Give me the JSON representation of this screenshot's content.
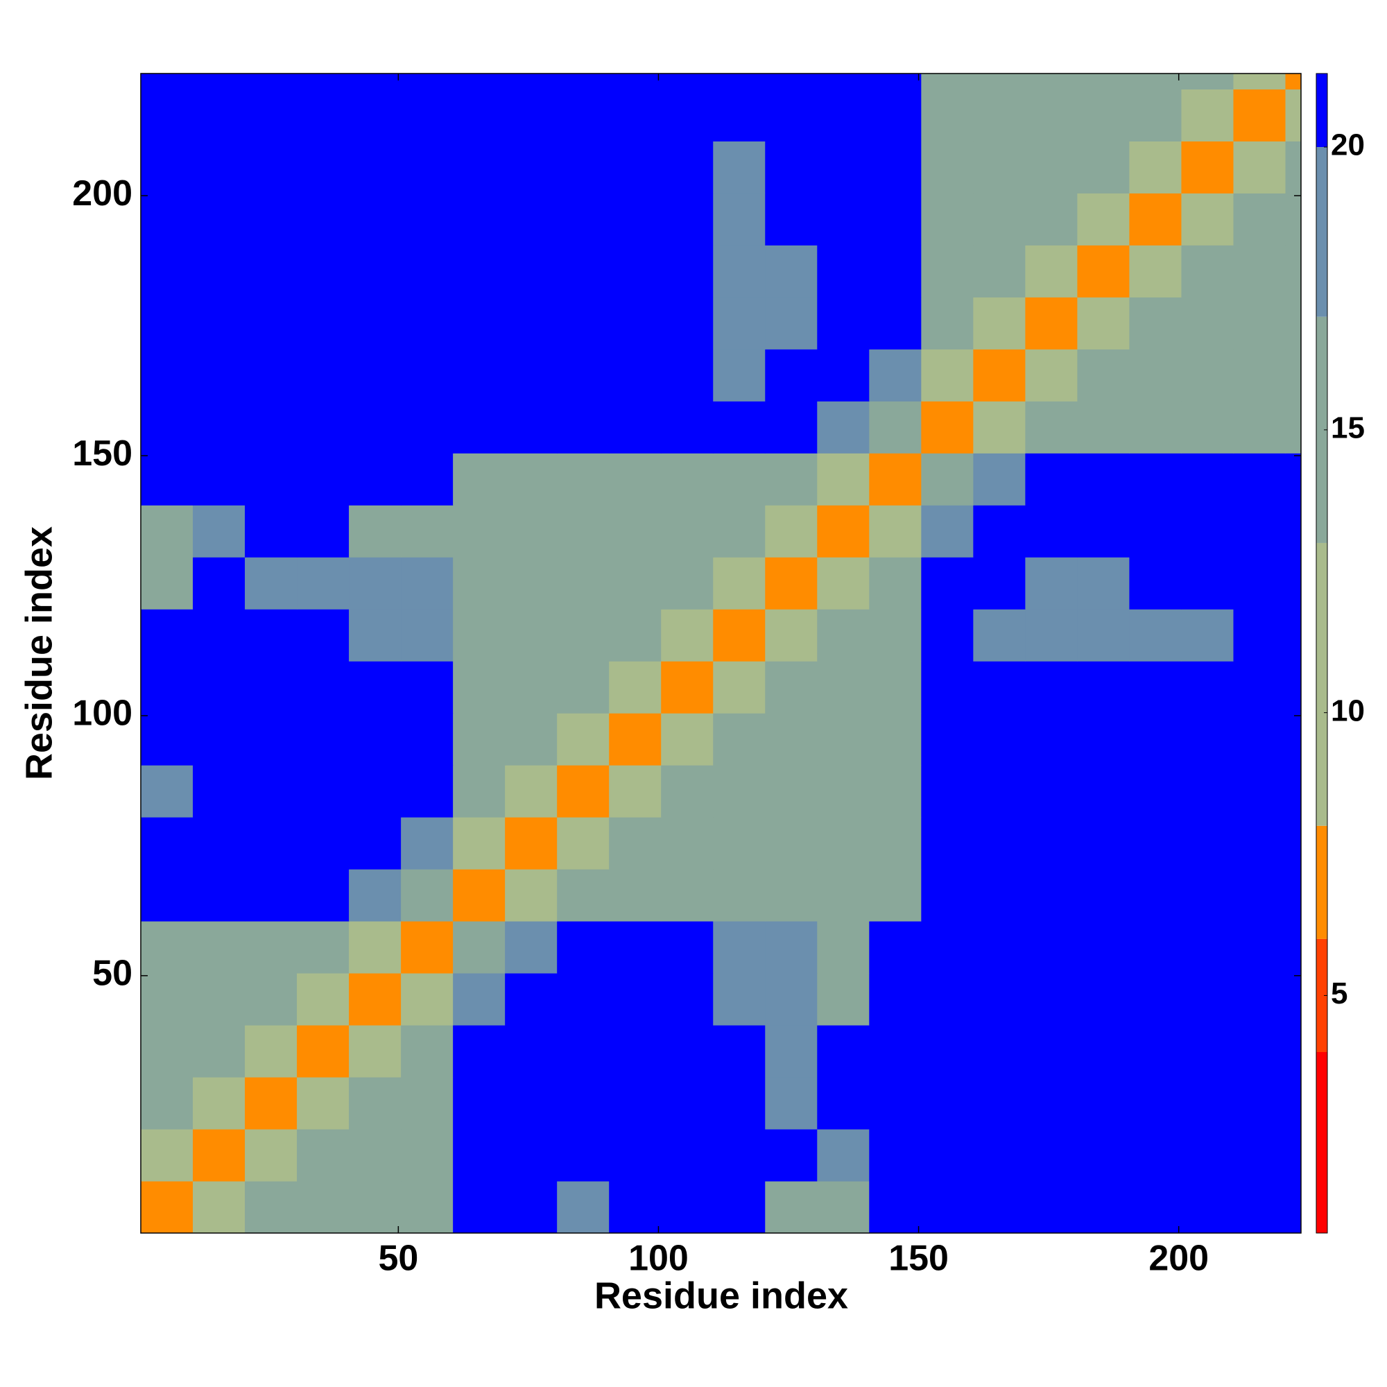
{
  "chart_data": {
    "type": "heatmap",
    "xlabel": "Residue index",
    "ylabel": "Residue index",
    "xlim": [
      0.5,
      223.5
    ],
    "ylim": [
      0.5,
      223.5
    ],
    "xticks": [
      50,
      100,
      150,
      200
    ],
    "yticks": [
      50,
      100,
      150,
      200
    ],
    "xbins": [
      0.5,
      10.5,
      20.5,
      30.5,
      40.5,
      50.5,
      60.5,
      70.5,
      80.5,
      90.5,
      100.5,
      110.5,
      120.5,
      130.5,
      140.5,
      150.5,
      160.5,
      170.5,
      180.5,
      190.5,
      200.5,
      210.5,
      220.5,
      223.5
    ],
    "ybins": [
      0.5,
      10.5,
      20.5,
      30.5,
      40.5,
      50.5,
      60.5,
      70.5,
      80.5,
      90.5,
      100.5,
      110.5,
      120.5,
      130.5,
      140.5,
      150.5,
      160.5,
      170.5,
      180.5,
      190.5,
      200.5,
      210.5,
      220.5,
      223.5
    ],
    "z": [
      [
        7,
        11,
        13,
        15,
        15,
        15,
        21,
        21,
        19,
        21,
        21,
        21,
        16,
        16,
        21,
        21,
        21,
        21,
        21,
        21,
        21,
        21,
        21
      ],
      [
        11,
        7,
        11,
        13,
        15,
        15,
        21,
        21,
        21,
        21,
        21,
        21,
        21,
        18,
        21,
        21,
        21,
        21,
        21,
        21,
        21,
        21,
        21
      ],
      [
        13,
        11,
        7,
        11,
        13,
        15,
        21,
        21,
        21,
        21,
        21,
        21,
        18,
        21,
        21,
        21,
        21,
        21,
        21,
        21,
        21,
        21,
        21
      ],
      [
        15,
        13,
        11,
        7,
        11,
        13,
        21,
        21,
        21,
        21,
        21,
        21,
        17,
        21,
        21,
        21,
        21,
        21,
        21,
        21,
        21,
        21,
        21
      ],
      [
        15,
        15,
        13,
        11,
        7,
        11,
        17,
        21,
        21,
        21,
        21,
        17,
        17,
        16,
        21,
        21,
        21,
        21,
        21,
        21,
        21,
        21,
        21
      ],
      [
        15,
        15,
        15,
        13,
        11,
        7,
        13,
        17,
        21,
        21,
        21,
        17,
        17,
        16,
        21,
        21,
        21,
        21,
        21,
        21,
        21,
        21,
        21
      ],
      [
        21,
        21,
        21,
        21,
        17,
        13,
        7,
        11,
        13,
        15,
        15,
        15,
        15,
        15,
        15,
        21,
        21,
        21,
        21,
        21,
        21,
        21,
        21
      ],
      [
        21,
        21,
        21,
        21,
        21,
        17,
        11,
        7,
        11,
        13,
        15,
        15,
        15,
        15,
        15,
        21,
        21,
        21,
        21,
        21,
        21,
        21,
        21
      ],
      [
        19,
        21,
        21,
        21,
        21,
        21,
        13,
        11,
        7,
        11,
        13,
        15,
        15,
        15,
        15,
        21,
        21,
        21,
        21,
        21,
        21,
        21,
        21
      ],
      [
        21,
        21,
        21,
        21,
        21,
        21,
        15,
        13,
        11,
        7,
        11,
        13,
        15,
        15,
        15,
        21,
        21,
        21,
        21,
        21,
        21,
        21,
        21
      ],
      [
        21,
        21,
        21,
        21,
        21,
        21,
        15,
        15,
        13,
        11,
        7,
        11,
        13,
        15,
        15,
        21,
        21,
        21,
        21,
        21,
        21,
        21,
        21
      ],
      [
        21,
        21,
        21,
        21,
        17,
        17,
        15,
        15,
        15,
        13,
        11,
        7,
        11,
        13,
        15,
        21,
        19,
        17,
        17,
        17,
        18,
        21,
        21
      ],
      [
        16,
        21,
        18,
        17,
        17,
        17,
        15,
        15,
        15,
        15,
        13,
        11,
        7,
        11,
        13,
        21,
        21,
        17,
        18,
        21,
        21,
        21,
        21
      ],
      [
        16,
        18,
        21,
        21,
        16,
        16,
        15,
        15,
        15,
        15,
        15,
        13,
        11,
        7,
        11,
        17,
        21,
        21,
        21,
        21,
        21,
        21,
        21
      ],
      [
        21,
        21,
        21,
        21,
        21,
        21,
        15,
        15,
        15,
        15,
        15,
        15,
        13,
        11,
        7,
        13,
        17,
        21,
        21,
        21,
        21,
        21,
        21
      ],
      [
        21,
        21,
        21,
        21,
        21,
        21,
        21,
        21,
        21,
        21,
        21,
        21,
        21,
        17,
        13,
        7,
        11,
        13,
        15,
        15,
        15,
        15,
        15
      ],
      [
        21,
        21,
        21,
        21,
        21,
        21,
        21,
        21,
        21,
        21,
        21,
        19,
        21,
        21,
        17,
        11,
        7,
        11,
        13,
        15,
        15,
        15,
        15
      ],
      [
        21,
        21,
        21,
        21,
        21,
        21,
        21,
        21,
        21,
        21,
        21,
        17,
        17,
        21,
        21,
        13,
        11,
        7,
        11,
        13,
        15,
        15,
        15
      ],
      [
        21,
        21,
        21,
        21,
        21,
        21,
        21,
        21,
        21,
        21,
        21,
        17,
        18,
        21,
        21,
        15,
        13,
        11,
        7,
        11,
        13,
        15,
        15
      ],
      [
        21,
        21,
        21,
        21,
        21,
        21,
        21,
        21,
        21,
        21,
        21,
        17,
        21,
        21,
        21,
        15,
        15,
        13,
        11,
        7,
        11,
        13,
        15
      ],
      [
        21,
        21,
        21,
        21,
        21,
        21,
        21,
        21,
        21,
        21,
        21,
        18,
        21,
        21,
        21,
        15,
        15,
        15,
        13,
        11,
        7,
        11,
        13
      ],
      [
        21,
        21,
        21,
        21,
        21,
        21,
        21,
        21,
        21,
        21,
        21,
        21,
        21,
        21,
        21,
        15,
        15,
        15,
        15,
        13,
        11,
        7,
        11
      ],
      [
        21,
        21,
        21,
        21,
        21,
        21,
        21,
        21,
        21,
        21,
        21,
        21,
        21,
        21,
        21,
        15,
        15,
        15,
        15,
        15,
        13,
        11,
        7
      ]
    ],
    "clim": [
      0.8,
      21.3
    ],
    "colorbar_ticks": [
      5,
      10,
      15,
      20
    ],
    "colorscale": [
      {
        "value": 0.8,
        "color": "#ff0000"
      },
      {
        "value": 4,
        "color": "#ff4000"
      },
      {
        "value": 6,
        "color": "#ff8c00"
      },
      {
        "value": 8,
        "color": "#a9bb8c"
      },
      {
        "value": 13,
        "color": "#8aa89a"
      },
      {
        "value": 17,
        "color": "#6b8fae"
      },
      {
        "value": 20,
        "color": "#0000ff"
      }
    ]
  }
}
